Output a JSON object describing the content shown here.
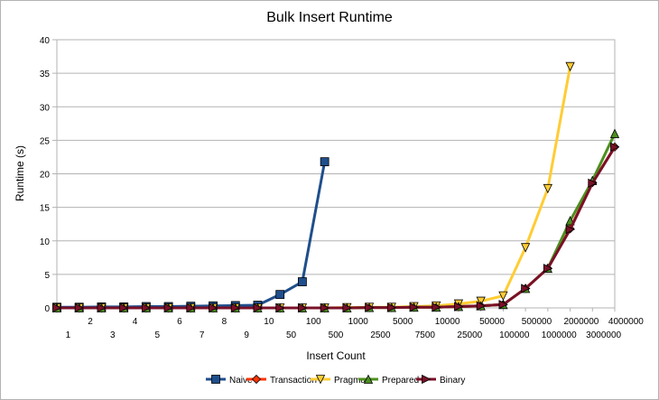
{
  "chart_data": {
    "type": "line",
    "title": "Bulk Insert Runtime",
    "xlabel": "Insert Count",
    "ylabel": "Runtime (s)",
    "ylim": [
      0,
      40
    ],
    "yticks": [
      0,
      5,
      10,
      15,
      20,
      25,
      30,
      35,
      40
    ],
    "grid": true,
    "legend_position": "bottom",
    "categories": [
      "1",
      "2",
      "3",
      "4",
      "5",
      "6",
      "7",
      "8",
      "9",
      "10",
      "50",
      "100",
      "500",
      "1000",
      "2500",
      "5000",
      "7500",
      "10000",
      "25000",
      "50000",
      "100000",
      "500000",
      "1000000",
      "2000000",
      "3000000",
      "4000000"
    ],
    "series": [
      {
        "name": "Naive",
        "color": "#1f4e8c",
        "marker": "square",
        "values": [
          0.1,
          0.1,
          0.15,
          0.15,
          0.2,
          0.2,
          0.25,
          0.3,
          0.35,
          0.4,
          2.0,
          3.9,
          21.8,
          null,
          null,
          null,
          null,
          null,
          null,
          null,
          null,
          null,
          null,
          null,
          null,
          null
        ]
      },
      {
        "name": "Transaction",
        "color": "#ff3300",
        "marker": "diamond",
        "values": [
          0,
          0,
          0,
          0,
          0,
          0,
          0,
          0,
          0,
          0,
          0,
          0,
          0,
          0,
          0.05,
          0.05,
          0.1,
          0.1,
          0.2,
          0.3,
          0.5,
          2.9,
          5.9,
          11.8,
          18.7,
          24.0
        ]
      },
      {
        "name": "Pragma",
        "color": "#ffcc33",
        "marker": "triangle-down",
        "values": [
          0,
          0,
          0,
          0,
          0,
          0,
          0,
          0,
          0,
          0,
          0,
          0,
          0,
          0.05,
          0.1,
          0.1,
          0.2,
          0.3,
          0.6,
          1.0,
          1.8,
          9.0,
          17.8,
          36.0,
          null,
          null
        ]
      },
      {
        "name": "Prepared",
        "color": "#4d8f1f",
        "marker": "triangle-up",
        "values": [
          0,
          0,
          0,
          0,
          0,
          0,
          0,
          0,
          0,
          0,
          0,
          0,
          0,
          0,
          0.05,
          0.05,
          0.1,
          0.1,
          0.2,
          0.3,
          0.5,
          2.9,
          5.9,
          13.0,
          19.0,
          26.0
        ]
      },
      {
        "name": "Binary",
        "color": "#7a1028",
        "marker": "triangle-right",
        "values": [
          0,
          0,
          0,
          0,
          0,
          0,
          0,
          0,
          0,
          0,
          0,
          0,
          0,
          0,
          0.05,
          0.05,
          0.1,
          0.1,
          0.2,
          0.3,
          0.5,
          2.9,
          5.9,
          11.7,
          18.6,
          24.0
        ]
      }
    ]
  }
}
